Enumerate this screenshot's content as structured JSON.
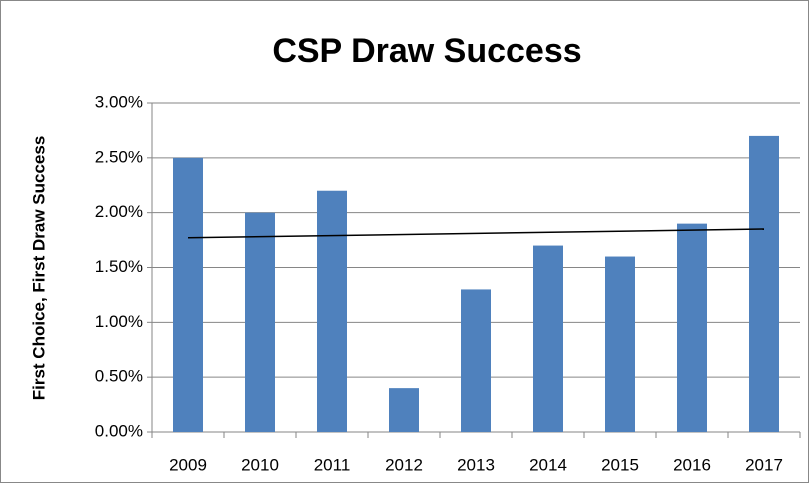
{
  "chart_data": {
    "type": "bar",
    "title": "CSP Draw Success",
    "y_label": "First Choice, First Draw Success",
    "categories": [
      "2009",
      "2010",
      "2011",
      "2012",
      "2013",
      "2014",
      "2015",
      "2016",
      "2017"
    ],
    "values": [
      2.5,
      2.0,
      2.2,
      0.4,
      1.3,
      1.7,
      1.6,
      1.9,
      2.7
    ],
    "color": "#4f81bd",
    "ylim": [
      0,
      3
    ],
    "yticks": [
      {
        "value": 0,
        "label": "0.00%"
      },
      {
        "value": 0.5,
        "label": "0.50%"
      },
      {
        "value": 1,
        "label": "1.00%"
      },
      {
        "value": 1.5,
        "label": "1.50%"
      },
      {
        "value": 2,
        "label": "2.00%"
      },
      {
        "value": 2.5,
        "label": "2.50%"
      },
      {
        "value": 3,
        "label": "3.00%"
      }
    ],
    "grid": true,
    "trendline": "linear"
  }
}
